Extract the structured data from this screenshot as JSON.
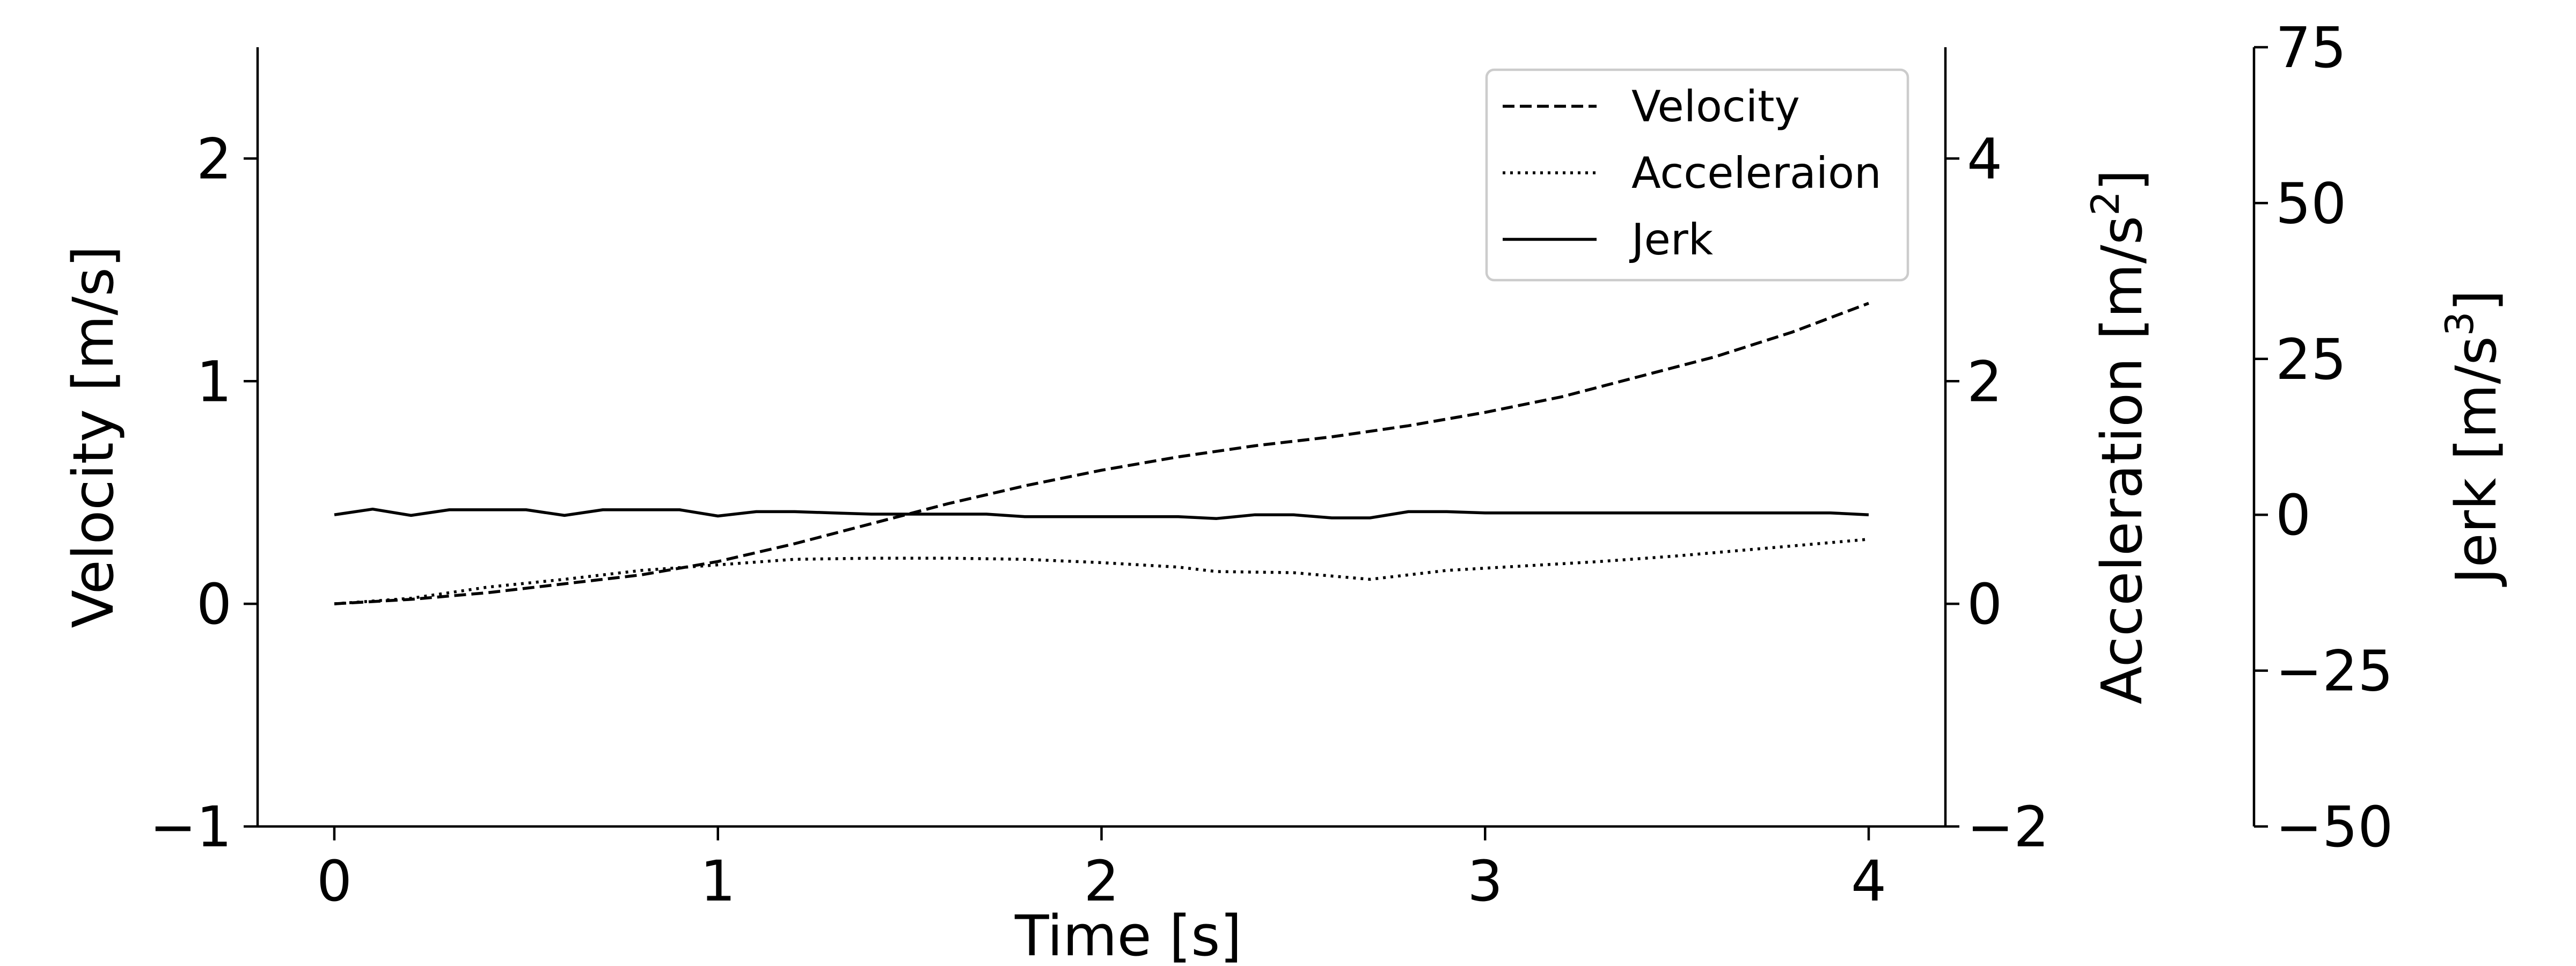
{
  "chart_data": {
    "type": "line",
    "xlabel": "Time [s]",
    "x_ticks": [
      "0",
      "1",
      "2",
      "3",
      "4"
    ],
    "xlim": [
      -0.2,
      4.2
    ],
    "axes": [
      {
        "id": "velocity",
        "label": "Velocity [m/s]",
        "ylim": [
          -1,
          2.5
        ],
        "ticks": [
          -1,
          0,
          1,
          2
        ],
        "tick_labels": [
          "−1",
          "0",
          "1",
          "2"
        ],
        "side": "left"
      },
      {
        "id": "acceleration",
        "label_main": "Acceleration [m/s",
        "label_sup": "2",
        "label_end": "]",
        "ylim": [
          -2,
          5
        ],
        "ticks": [
          -2,
          0,
          2,
          4
        ],
        "tick_labels": [
          "−2",
          "0",
          "2",
          "4"
        ],
        "side": "right"
      },
      {
        "id": "jerk",
        "label_main": "Jerk [m/s",
        "label_sup": "3",
        "label_end": "]",
        "ylim": [
          -50,
          75
        ],
        "ticks": [
          -50,
          -25,
          0,
          25,
          50,
          75
        ],
        "tick_labels": [
          "−50",
          "−25",
          "0",
          "25",
          "50",
          "75"
        ],
        "side": "right-offset"
      }
    ],
    "series": [
      {
        "name": "Velocity",
        "axis": "velocity",
        "dash": "dashed",
        "x": [
          0,
          0.2,
          0.4,
          0.6,
          0.8,
          1.0,
          1.2,
          1.4,
          1.6,
          1.8,
          2.0,
          2.2,
          2.4,
          2.6,
          2.8,
          3.0,
          3.2,
          3.4,
          3.6,
          3.8,
          4.0
        ],
        "y": [
          0,
          0.02,
          0.05,
          0.09,
          0.13,
          0.19,
          0.27,
          0.36,
          0.45,
          0.53,
          0.6,
          0.66,
          0.71,
          0.75,
          0.8,
          0.86,
          0.93,
          1.02,
          1.11,
          1.22,
          1.35
        ]
      },
      {
        "name": "Acceleraion",
        "axis": "acceleration",
        "dash": "dotted",
        "x": [
          0,
          0.2,
          0.4,
          0.6,
          0.8,
          1.0,
          1.2,
          1.4,
          1.6,
          1.8,
          2.0,
          2.2,
          2.3,
          2.5,
          2.7,
          2.9,
          3.1,
          3.3,
          3.5,
          3.7,
          3.9,
          4.0
        ],
        "y": [
          0,
          0.05,
          0.15,
          0.22,
          0.3,
          0.35,
          0.4,
          0.41,
          0.41,
          0.4,
          0.37,
          0.33,
          0.29,
          0.28,
          0.22,
          0.3,
          0.34,
          0.38,
          0.43,
          0.49,
          0.55,
          0.58
        ]
      },
      {
        "name": "Jerk",
        "axis": "jerk",
        "dash": "solid",
        "x": [
          0,
          0.1,
          0.2,
          0.3,
          0.4,
          0.5,
          0.6,
          0.7,
          0.8,
          0.9,
          1.0,
          1.1,
          1.2,
          1.3,
          1.4,
          1.5,
          1.6,
          1.7,
          1.8,
          1.9,
          2.0,
          2.1,
          2.2,
          2.3,
          2.4,
          2.5,
          2.6,
          2.7,
          2.8,
          2.9,
          3.0,
          3.2,
          3.4,
          3.6,
          3.8,
          3.9,
          4.0
        ],
        "y": [
          0,
          0.9,
          -0.1,
          0.8,
          0.8,
          0.8,
          -0.1,
          0.8,
          0.8,
          0.8,
          -0.2,
          0.5,
          0.5,
          0.3,
          0.1,
          0.1,
          0.1,
          0.1,
          -0.3,
          -0.3,
          -0.3,
          -0.3,
          -0.3,
          -0.6,
          0,
          0,
          -0.5,
          -0.5,
          0.5,
          0.5,
          0.3,
          0.3,
          0.3,
          0.3,
          0.3,
          0.3,
          0
        ]
      }
    ],
    "legend": {
      "position": "upper-right",
      "entries": [
        "Velocity",
        "Acceleraion",
        "Jerk"
      ]
    },
    "grid": false
  }
}
